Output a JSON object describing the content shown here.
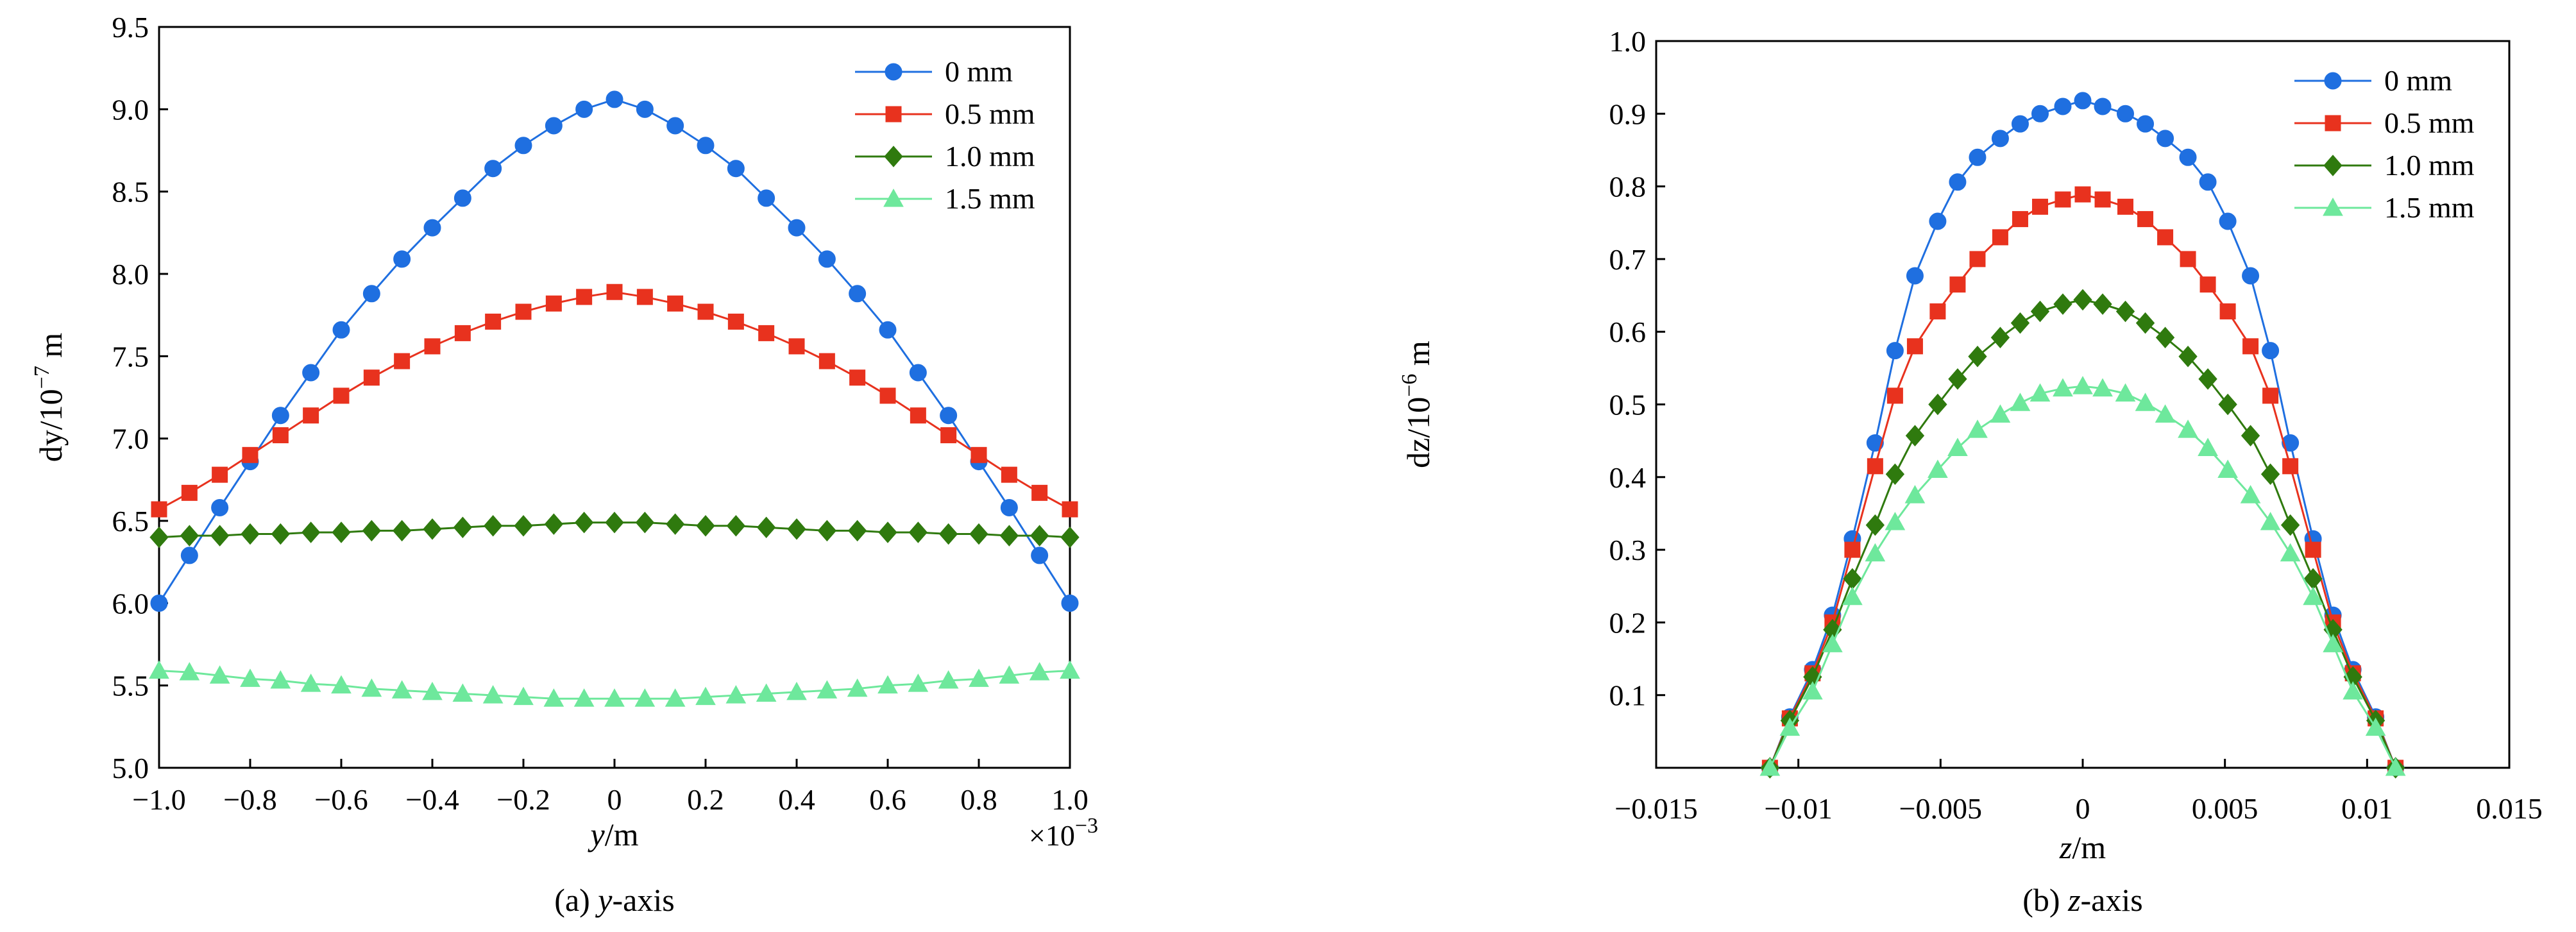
{
  "colors": {
    "0 mm": "#1f6fe0",
    "0.5 mm": "#e8321e",
    "1.0 mm": "#2f7a0e",
    "1.5 mm": "#6ee89c"
  },
  "markers": {
    "0 mm": "circle",
    "0.5 mm": "square",
    "1.0 mm": "diamond",
    "1.5 mm": "triangle"
  },
  "chart_data": [
    {
      "type": "line",
      "caption_prefix": "(a) ",
      "caption_var": "y",
      "caption_suffix": "-axis",
      "xlabel_var": "y",
      "xlabel_unit": "/m",
      "ylabel": "dy/10",
      "ylabel_exp": "−7",
      "ylabel_unit": " m",
      "x_multiplier": "×10",
      "x_multiplier_exp": "−3",
      "xlim": [
        -1.0,
        1.0
      ],
      "ylim": [
        5.0,
        9.5
      ],
      "xticks": [
        -1.0,
        -0.8,
        -0.6,
        -0.4,
        -0.2,
        0,
        0.2,
        0.4,
        0.6,
        0.8,
        1.0
      ],
      "xtick_labels": [
        "−1.0",
        "−0.8",
        "−0.6",
        "−0.4",
        "−0.2",
        "0",
        "0.2",
        "0.4",
        "0.6",
        "0.8",
        "1.0"
      ],
      "yticks": [
        5.0,
        5.5,
        6.0,
        6.5,
        7.0,
        7.5,
        8.0,
        8.5,
        9.0,
        9.5
      ],
      "ytick_labels": [
        "5.0",
        "5.5",
        "6.0",
        "6.5",
        "7.0",
        "7.5",
        "8.0",
        "8.5",
        "9.0",
        "9.5"
      ],
      "legend_position": "top-right",
      "grid": false,
      "x": [
        -1.0,
        -0.9333,
        -0.8667,
        -0.8,
        -0.7333,
        -0.6667,
        -0.6,
        -0.5333,
        -0.4667,
        -0.4,
        -0.3333,
        -0.2667,
        -0.2,
        -0.1333,
        -0.0667,
        0.0,
        0.0667,
        0.1333,
        0.2,
        0.2667,
        0.3333,
        0.4,
        0.4667,
        0.5333,
        0.6,
        0.6667,
        0.7333,
        0.8,
        0.8667,
        0.9333,
        1.0
      ],
      "series": [
        {
          "name": "0 mm",
          "values": [
            6.0,
            6.29,
            6.58,
            6.86,
            7.14,
            7.4,
            7.66,
            7.88,
            8.09,
            8.28,
            8.46,
            8.64,
            8.78,
            8.9,
            9.0,
            9.06,
            9.0,
            8.9,
            8.78,
            8.64,
            8.46,
            8.28,
            8.09,
            7.88,
            7.66,
            7.4,
            7.14,
            6.86,
            6.58,
            6.29,
            6.0
          ]
        },
        {
          "name": "0.5 mm",
          "values": [
            6.57,
            6.67,
            6.78,
            6.9,
            7.02,
            7.14,
            7.26,
            7.37,
            7.47,
            7.56,
            7.64,
            7.71,
            7.77,
            7.82,
            7.86,
            7.89,
            7.86,
            7.82,
            7.77,
            7.71,
            7.64,
            7.56,
            7.47,
            7.37,
            7.26,
            7.14,
            7.02,
            6.9,
            6.78,
            6.67,
            6.57
          ]
        },
        {
          "name": "1.0 mm",
          "values": [
            6.4,
            6.41,
            6.41,
            6.42,
            6.42,
            6.43,
            6.43,
            6.44,
            6.44,
            6.45,
            6.46,
            6.47,
            6.47,
            6.48,
            6.49,
            6.49,
            6.49,
            6.48,
            6.47,
            6.47,
            6.46,
            6.45,
            6.44,
            6.44,
            6.43,
            6.43,
            6.42,
            6.42,
            6.41,
            6.41,
            6.4
          ]
        },
        {
          "name": "1.5 mm",
          "values": [
            5.59,
            5.58,
            5.56,
            5.54,
            5.53,
            5.51,
            5.5,
            5.48,
            5.47,
            5.46,
            5.45,
            5.44,
            5.43,
            5.42,
            5.42,
            5.42,
            5.42,
            5.42,
            5.43,
            5.44,
            5.45,
            5.46,
            5.47,
            5.48,
            5.5,
            5.51,
            5.53,
            5.54,
            5.56,
            5.58,
            5.59
          ]
        }
      ]
    },
    {
      "type": "line",
      "caption_prefix": "(b) ",
      "caption_var": "z",
      "caption_suffix": "-axis",
      "xlabel_var": "z",
      "xlabel_unit": "/m",
      "ylabel": "dz/10",
      "ylabel_exp": "−6",
      "ylabel_unit": " m",
      "xlim": [
        -0.015,
        0.015
      ],
      "ylim": [
        0.0,
        1.0
      ],
      "xticks": [
        -0.015,
        -0.01,
        -0.005,
        0,
        0.005,
        0.01,
        0.015
      ],
      "xtick_labels": [
        "−0.015",
        "−0.01",
        "−0.005",
        "0",
        "0.005",
        "0.01",
        "0.015"
      ],
      "yticks": [
        0.1,
        0.2,
        0.3,
        0.4,
        0.5,
        0.6,
        0.7,
        0.8,
        0.9,
        1.0
      ],
      "ytick_labels": [
        "0.1",
        "0.2",
        "0.3",
        "0.4",
        "0.5",
        "0.6",
        "0.7",
        "0.8",
        "0.9",
        "1.0"
      ],
      "legend_position": "top-right",
      "grid": false,
      "x": [
        -0.011,
        -0.0103,
        -0.0095,
        -0.0088,
        -0.0081,
        -0.0073,
        -0.0066,
        -0.0059,
        -0.0051,
        -0.0044,
        -0.0037,
        -0.0029,
        -0.0022,
        -0.0015,
        -0.0007,
        0.0,
        0.0007,
        0.0015,
        0.0022,
        0.0029,
        0.0037,
        0.0044,
        0.0051,
        0.0059,
        0.0066,
        0.0073,
        0.0081,
        0.0088,
        0.0095,
        0.0103,
        0.011
      ],
      "series": [
        {
          "name": "0 mm",
          "values": [
            0.0,
            0.07,
            0.135,
            0.21,
            0.315,
            0.447,
            0.574,
            0.677,
            0.752,
            0.806,
            0.84,
            0.866,
            0.886,
            0.9,
            0.91,
            0.918,
            0.91,
            0.9,
            0.886,
            0.866,
            0.84,
            0.806,
            0.752,
            0.677,
            0.574,
            0.447,
            0.315,
            0.21,
            0.135,
            0.07,
            0.0
          ]
        },
        {
          "name": "0.5 mm",
          "values": [
            0.0,
            0.068,
            0.13,
            0.2,
            0.3,
            0.415,
            0.512,
            0.58,
            0.628,
            0.665,
            0.7,
            0.73,
            0.755,
            0.772,
            0.782,
            0.789,
            0.782,
            0.772,
            0.755,
            0.73,
            0.7,
            0.665,
            0.628,
            0.58,
            0.512,
            0.415,
            0.3,
            0.2,
            0.13,
            0.068,
            0.0
          ]
        },
        {
          "name": "1.0 mm",
          "values": [
            0.0,
            0.065,
            0.125,
            0.19,
            0.26,
            0.334,
            0.404,
            0.457,
            0.5,
            0.535,
            0.566,
            0.592,
            0.612,
            0.628,
            0.638,
            0.644,
            0.638,
            0.628,
            0.612,
            0.592,
            0.566,
            0.535,
            0.5,
            0.457,
            0.404,
            0.334,
            0.26,
            0.19,
            0.125,
            0.065,
            0.0
          ]
        },
        {
          "name": "1.5 mm",
          "values": [
            0.0,
            0.055,
            0.105,
            0.17,
            0.235,
            0.295,
            0.338,
            0.375,
            0.41,
            0.44,
            0.465,
            0.486,
            0.502,
            0.515,
            0.522,
            0.525,
            0.522,
            0.515,
            0.502,
            0.486,
            0.465,
            0.44,
            0.41,
            0.375,
            0.338,
            0.295,
            0.235,
            0.17,
            0.105,
            0.055,
            0.0
          ]
        }
      ]
    }
  ]
}
